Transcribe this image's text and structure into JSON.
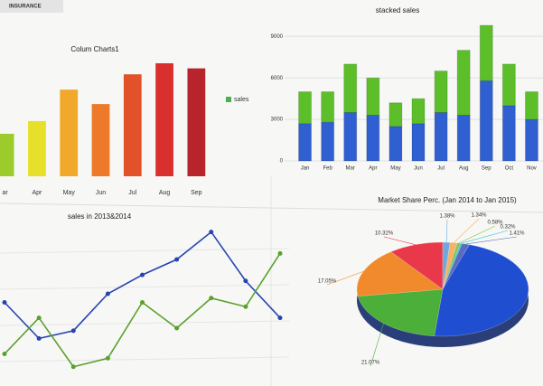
{
  "header": {
    "title": "INSURANCE"
  },
  "chart_data": [
    {
      "type": "bar",
      "title": "Colum Charts1",
      "categories": [
        "ar",
        "Apr",
        "May",
        "Jun",
        "Jul",
        "Aug",
        "Sep"
      ],
      "series": [
        {
          "name": "sales",
          "color": "#4caf50",
          "values": [
            50,
            65,
            102,
            85,
            120,
            133,
            127
          ],
          "colors": [
            "#9ccc2c",
            "#e6e02a",
            "#f0a92a",
            "#ec7a28",
            "#e2522a",
            "#d9302e",
            "#b8242c"
          ]
        }
      ]
    },
    {
      "type": "stacked-bar",
      "title": "stacked sales",
      "categories": [
        "Jan",
        "Feb",
        "Mar",
        "Apr",
        "May",
        "Jun",
        "Jul",
        "Aug",
        "Sep",
        "Oct",
        "Nov"
      ],
      "ylim": [
        0,
        10000
      ],
      "yticks": [
        0,
        3000,
        6000,
        9000
      ],
      "series": [
        {
          "color": "#2f5fd0",
          "values": [
            2700,
            2800,
            3500,
            3300,
            2500,
            2700,
            3500,
            3300,
            5800,
            4000,
            3000
          ]
        },
        {
          "color": "#5cbf2a",
          "values": [
            2300,
            2200,
            3500,
            2700,
            1700,
            1800,
            3000,
            4700,
            4000,
            3000,
            2000
          ]
        }
      ]
    },
    {
      "type": "line",
      "title": "sales in 2013&2014",
      "series": [
        {
          "color": "#2744b0",
          "values": [
            90,
            48,
            57,
            100,
            122,
            140,
            172,
            115,
            72
          ]
        },
        {
          "color": "#5aa02c",
          "values": [
            30,
            72,
            15,
            25,
            90,
            60,
            95,
            85,
            147
          ]
        }
      ]
    },
    {
      "type": "pie",
      "title": "Market Share Perc. (Jan 2014 to Jan 2015)",
      "values": [
        10.32,
        1.38,
        1.34,
        0.58,
        0.32,
        1.41,
        46.53,
        21.07,
        17.05
      ],
      "value_labels": [
        "10.32%",
        "1.38%",
        "1.34%",
        "0.58%",
        "0.32%",
        "1.41%",
        null,
        "21.07%",
        "17.05%"
      ],
      "colors": [
        "#e8384a",
        "#6fa8dc",
        "#f6b26b",
        "#8bc34a",
        "#26c6da",
        "#5c6bc0",
        "#1f4fd0",
        "#4caf3a",
        "#f08a2c"
      ]
    }
  ]
}
